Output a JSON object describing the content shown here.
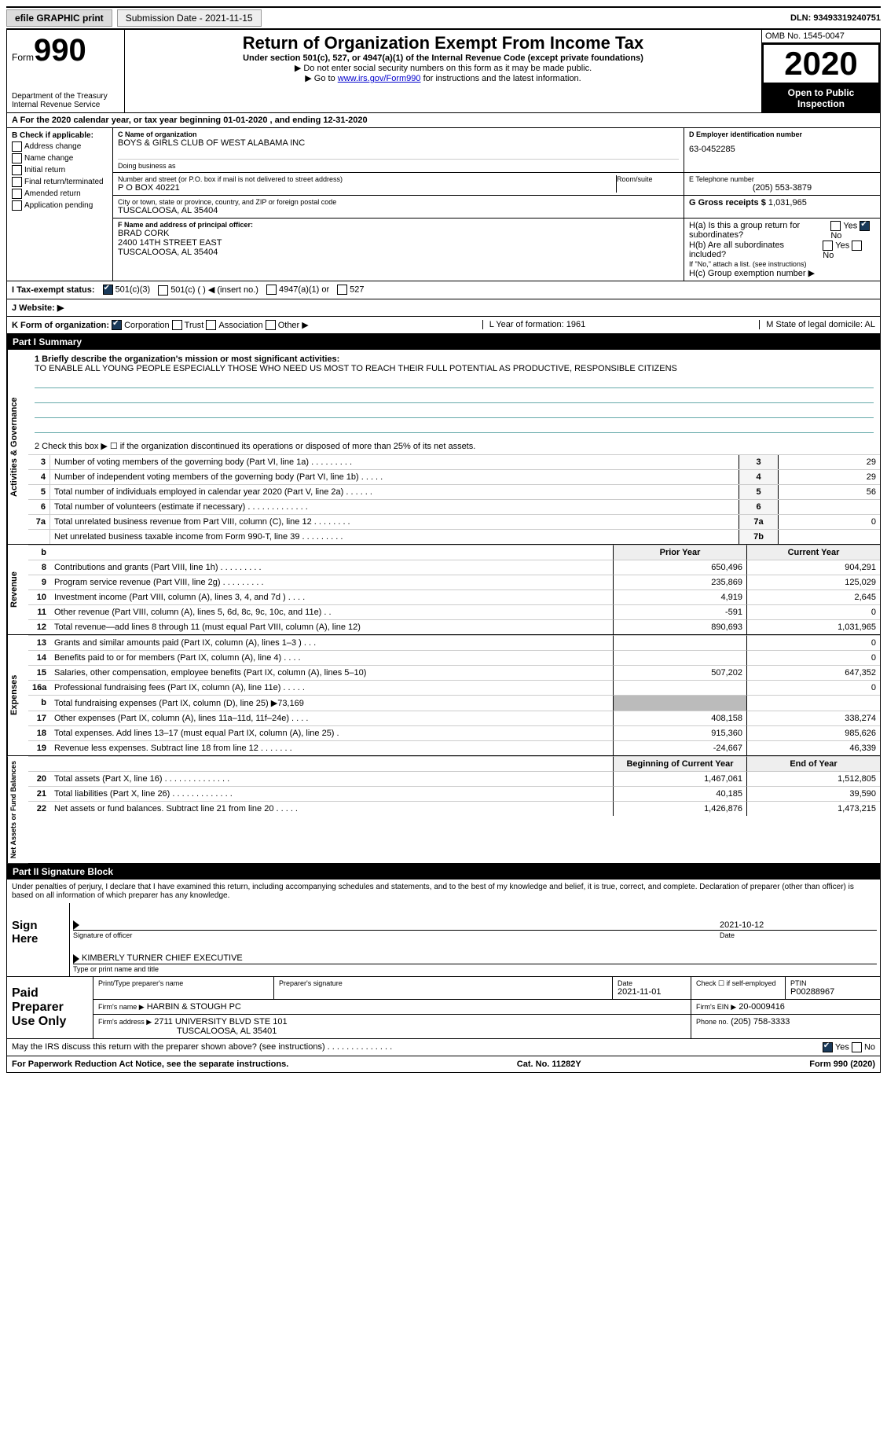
{
  "topbar": {
    "efile": "efile GRAPHIC print",
    "submission": "Submission Date - 2021-11-15",
    "dln_label": "DLN:",
    "dln": "93493319240751"
  },
  "header": {
    "form_label": "Form",
    "form_num": "990",
    "dept": "Department of the Treasury\nInternal Revenue Service",
    "title": "Return of Organization Exempt From Income Tax",
    "sub1": "Under section 501(c), 527, or 4947(a)(1) of the Internal Revenue Code (except private foundations)",
    "sub2": "▶ Do not enter social security numbers on this form as it may be made public.",
    "sub3_pre": "▶ Go to ",
    "sub3_link": "www.irs.gov/Form990",
    "sub3_post": " for instructions and the latest information.",
    "omb": "OMB No. 1545-0047",
    "year": "2020",
    "open": "Open to Public Inspection"
  },
  "period": {
    "text": "A For the 2020 calendar year, or tax year beginning 01-01-2020   , and ending 12-31-2020",
    "b_label": "B Check if applicable:",
    "opts": [
      "Address change",
      "Name change",
      "Initial return",
      "Final return/terminated",
      "Amended return",
      "Application pending"
    ]
  },
  "org": {
    "c_label": "C Name of organization",
    "name": "BOYS & GIRLS CLUB OF WEST ALABAMA INC",
    "dba_label": "Doing business as",
    "dba": "",
    "addr_label": "Number and street (or P.O. box if mail is not delivered to street address)",
    "room_label": "Room/suite",
    "addr": "P O BOX 40221",
    "city_label": "City or town, state or province, country, and ZIP or foreign postal code",
    "city": "TUSCALOOSA, AL  35404",
    "d_label": "D Employer identification number",
    "ein": "63-0452285",
    "e_label": "E Telephone number",
    "phone": "(205) 553-3879",
    "g_label": "G Gross receipts $",
    "gross": "1,031,965",
    "f_label": "F Name and address of principal officer:",
    "officer": "BRAD CORK",
    "officer_addr1": "2400 14TH STREET EAST",
    "officer_addr2": "TUSCALOOSA, AL  35404",
    "ha": "H(a)  Is this a group return for subordinates?",
    "hb": "H(b)  Are all subordinates included?",
    "hb_note": "If \"No,\" attach a list. (see instructions)",
    "hc": "H(c)  Group exemption number ▶",
    "yes": "Yes",
    "no": "No"
  },
  "status": {
    "i_label": "I  Tax-exempt status:",
    "opt1": "501(c)(3)",
    "opt2": "501(c) (   ) ◀ (insert no.)",
    "opt3": "4947(a)(1) or",
    "opt4": "527",
    "j_label": "J  Website: ▶",
    "k_label": "K Form of organization:",
    "k_opts": [
      "Corporation",
      "Trust",
      "Association",
      "Other ▶"
    ],
    "l_label": "L Year of formation: 1961",
    "m_label": "M State of legal domicile: AL"
  },
  "part1": {
    "hdr": "Part I    Summary",
    "q1": "1  Briefly describe the organization's mission or most significant activities:",
    "mission": "TO ENABLE ALL YOUNG PEOPLE ESPECIALLY THOSE WHO NEED US MOST TO REACH THEIR FULL POTENTIAL AS PRODUCTIVE, RESPONSIBLE CITIZENS",
    "q2": "2  Check this box ▶ ☐  if the organization discontinued its operations or disposed of more than 25% of its net assets.",
    "rows": [
      {
        "n": "3",
        "lbl": "Number of voting members of the governing body (Part VI, line 1a)  .    .    .    .    .    .    .    .    .",
        "box": "3",
        "val": "29"
      },
      {
        "n": "4",
        "lbl": "Number of independent voting members of the governing body (Part VI, line 1b)  .    .    .    .    .",
        "box": "4",
        "val": "29"
      },
      {
        "n": "5",
        "lbl": "Total number of individuals employed in calendar year 2020 (Part V, line 2a)  .    .    .    .    .    .",
        "box": "5",
        "val": "56"
      },
      {
        "n": "6",
        "lbl": "Total number of volunteers (estimate if necessary)  .    .    .    .    .    .    .    .    .    .    .    .    .",
        "box": "6",
        "val": ""
      },
      {
        "n": "7a",
        "lbl": "Total unrelated business revenue from Part VIII, column (C), line 12  .    .    .    .    .    .    .    .",
        "box": "7a",
        "val": "0"
      },
      {
        "n": "",
        "lbl": "Net unrelated business taxable income from Form 990-T, line 39  .    .    .    .    .    .    .    .    .",
        "box": "7b",
        "val": ""
      }
    ],
    "vert1": "Activities & Governance"
  },
  "fin": {
    "hdr_prior": "Prior Year",
    "hdr_curr": "Current Year",
    "revenue": [
      {
        "n": "8",
        "lbl": "Contributions and grants (Part VIII, line 1h)  .    .    .    .    .    .    .    .    .",
        "c1": "650,496",
        "c2": "904,291"
      },
      {
        "n": "9",
        "lbl": "Program service revenue (Part VIII, line 2g)  .    .    .    .    .    .    .    .    .",
        "c1": "235,869",
        "c2": "125,029"
      },
      {
        "n": "10",
        "lbl": "Investment income (Part VIII, column (A), lines 3, 4, and 7d )  .    .    .    .",
        "c1": "4,919",
        "c2": "2,645"
      },
      {
        "n": "11",
        "lbl": "Other revenue (Part VIII, column (A), lines 5, 6d, 8c, 9c, 10c, and 11e)  .    .",
        "c1": "-591",
        "c2": "0"
      },
      {
        "n": "12",
        "lbl": "Total revenue—add lines 8 through 11 (must equal Part VIII, column (A), line 12)",
        "c1": "890,693",
        "c2": "1,031,965"
      }
    ],
    "expenses": [
      {
        "n": "13",
        "lbl": "Grants and similar amounts paid (Part IX, column (A), lines 1–3 )  .    .    .",
        "c1": "",
        "c2": "0"
      },
      {
        "n": "14",
        "lbl": "Benefits paid to or for members (Part IX, column (A), line 4)  .    .    .    .",
        "c1": "",
        "c2": "0"
      },
      {
        "n": "15",
        "lbl": "Salaries, other compensation, employee benefits (Part IX, column (A), lines 5–10)",
        "c1": "507,202",
        "c2": "647,352"
      },
      {
        "n": "16a",
        "lbl": "Professional fundraising fees (Part IX, column (A), line 11e)  .    .    .    .    .",
        "c1": "",
        "c2": "0"
      },
      {
        "n": "b",
        "lbl": "Total fundraising expenses (Part IX, column (D), line 25) ▶73,169",
        "c1": "GRAY",
        "c2": "GRAY"
      },
      {
        "n": "17",
        "lbl": "Other expenses (Part IX, column (A), lines 11a–11d, 11f–24e)  .    .    .    .",
        "c1": "408,158",
        "c2": "338,274"
      },
      {
        "n": "18",
        "lbl": "Total expenses. Add lines 13–17 (must equal Part IX, column (A), line 25)  .",
        "c1": "915,360",
        "c2": "985,626"
      },
      {
        "n": "19",
        "lbl": "Revenue less expenses. Subtract line 18 from line 12  .    .    .    .    .    .    .",
        "c1": "-24,667",
        "c2": "46,339"
      }
    ],
    "net_hdr1": "Beginning of Current Year",
    "net_hdr2": "End of Year",
    "net": [
      {
        "n": "20",
        "lbl": "Total assets (Part X, line 16)  .    .    .    .    .    .    .    .    .    .    .    .    .    .",
        "c1": "1,467,061",
        "c2": "1,512,805"
      },
      {
        "n": "21",
        "lbl": "Total liabilities (Part X, line 26)  .    .    .    .    .    .    .    .    .    .    .    .    .",
        "c1": "40,185",
        "c2": "39,590"
      },
      {
        "n": "22",
        "lbl": "Net assets or fund balances. Subtract line 21 from line 20  .    .    .    .    .",
        "c1": "1,426,876",
        "c2": "1,473,215"
      }
    ],
    "vert_rev": "Revenue",
    "vert_exp": "Expenses",
    "vert_net": "Net Assets or Fund Balances"
  },
  "part2": {
    "hdr": "Part II    Signature Block",
    "decl": "Under penalties of perjury, I declare that I have examined this return, including accompanying schedules and statements, and to the best of my knowledge and belief, it is true, correct, and complete. Declaration of preparer (other than officer) is based on all information of which preparer has any knowledge.",
    "sign_here": "Sign Here",
    "sig_officer": "Signature of officer",
    "date": "Date",
    "sig_date": "2021-10-12",
    "name": "KIMBERLY TURNER  CHIEF EXECUTIVE",
    "name_lbl": "Type or print name and title"
  },
  "prep": {
    "left": "Paid Preparer Use Only",
    "r1": [
      "Print/Type preparer's name",
      "Preparer's signature",
      "Date",
      "",
      "PTIN"
    ],
    "r1v": [
      "",
      "",
      "2021-11-01",
      "Check ☐ if self-employed",
      "P00288967"
    ],
    "firm_lbl": "Firm's name    ▶",
    "firm": "HARBIN & STOUGH PC",
    "ein_lbl": "Firm's EIN ▶",
    "ein": "20-0009416",
    "addr_lbl": "Firm's address ▶",
    "addr1": "2711 UNIVERSITY BLVD STE 101",
    "addr2": "TUSCALOOSA, AL  35401",
    "phone_lbl": "Phone no.",
    "phone": "(205) 758-3333"
  },
  "discuss": {
    "q": "May the IRS discuss this return with the preparer shown above? (see instructions)  .    .    .    .    .    .    .    .    .    .    .    .    .    .",
    "yes": "Yes",
    "no": "No"
  },
  "footer": {
    "left": "For Paperwork Reduction Act Notice, see the separate instructions.",
    "mid": "Cat. No. 11282Y",
    "right": "Form 990 (2020)"
  }
}
